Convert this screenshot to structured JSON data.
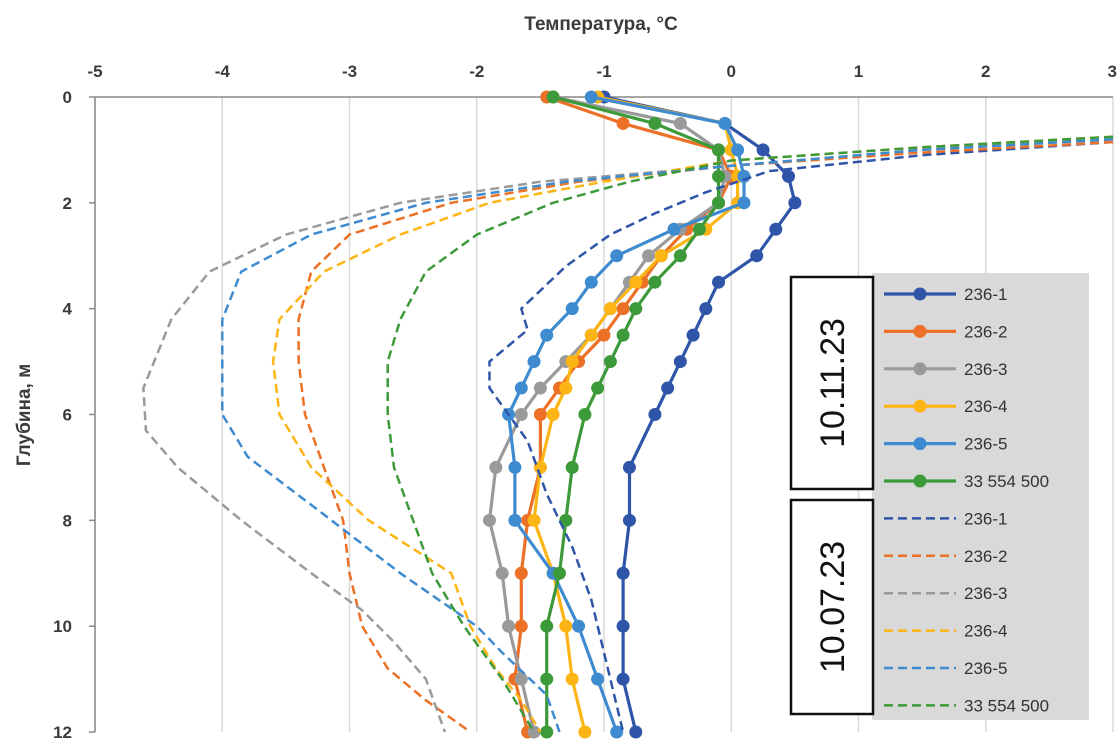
{
  "chart_data": {
    "type": "line",
    "xlabel": "Температура, °С",
    "ylabel": "Глубина, м",
    "xlim": [
      -5,
      3
    ],
    "ylim": [
      12,
      0
    ],
    "x_axis_position": "top",
    "y_inverted": true,
    "xticks": [
      "-5",
      "-4",
      "-3",
      "-2",
      "-1",
      "0",
      "1",
      "2",
      "3"
    ],
    "yticks": [
      "0",
      "2",
      "4",
      "6",
      "8",
      "10",
      "12"
    ],
    "grid": "vertical",
    "legend_position": "right",
    "groups": [
      {
        "label": "10.11.23",
        "style": "solid-with-markers"
      },
      {
        "label": "10.07.23",
        "style": "dashed"
      }
    ],
    "series": [
      {
        "name": "236-1",
        "group": "10.11.23",
        "color": "#2e55a8",
        "x": [
          -1.0,
          -0.05,
          0.25,
          0.45,
          0.5,
          0.35,
          0.2,
          -0.1,
          -0.2,
          -0.3,
          -0.4,
          -0.5,
          -0.6,
          -0.8,
          -0.8,
          -0.85,
          -0.85,
          -0.85,
          -0.75
        ],
        "y": [
          0,
          0.5,
          1,
          1.5,
          2,
          2.5,
          3,
          3.5,
          4,
          4.5,
          5,
          5.5,
          6,
          7,
          8,
          9,
          10,
          11,
          12
        ]
      },
      {
        "name": "236-2",
        "group": "10.11.23",
        "color": "#ec7026",
        "x": [
          -1.45,
          -0.85,
          -0.1,
          0.0,
          -0.1,
          -0.35,
          -0.55,
          -0.7,
          -0.85,
          -1.0,
          -1.2,
          -1.35,
          -1.5,
          -1.5,
          -1.6,
          -1.65,
          -1.65,
          -1.7,
          -1.6
        ],
        "y": [
          0,
          0.5,
          1,
          1.5,
          2,
          2.5,
          3,
          3.5,
          4,
          4.5,
          5,
          5.5,
          6,
          7,
          8,
          9,
          10,
          11,
          12
        ]
      },
      {
        "name": "236-3",
        "group": "10.11.23",
        "color": "#9a9a9a",
        "x": [
          -1.4,
          -0.4,
          -0.1,
          -0.05,
          -0.1,
          -0.4,
          -0.65,
          -0.8,
          -0.95,
          -1.1,
          -1.3,
          -1.5,
          -1.65,
          -1.85,
          -1.9,
          -1.8,
          -1.75,
          -1.65,
          -1.55
        ],
        "y": [
          0,
          0.5,
          1,
          1.5,
          2,
          2.5,
          3,
          3.5,
          4,
          4.5,
          5,
          5.5,
          6,
          7,
          8,
          9,
          10,
          11,
          12
        ]
      },
      {
        "name": "236-4",
        "group": "10.11.23",
        "color": "#fdb515",
        "x": [
          -1.05,
          -0.05,
          0.0,
          0.05,
          0.05,
          -0.2,
          -0.55,
          -0.75,
          -0.95,
          -1.1,
          -1.25,
          -1.3,
          -1.4,
          -1.5,
          -1.55,
          -1.4,
          -1.3,
          -1.25,
          -1.15
        ],
        "y": [
          0,
          0.5,
          1,
          1.5,
          2,
          2.5,
          3,
          3.5,
          4,
          4.5,
          5,
          5.5,
          6,
          7,
          8,
          9,
          10,
          11,
          12
        ]
      },
      {
        "name": "236-5",
        "group": "10.11.23",
        "color": "#3f8bd0",
        "x": [
          -1.1,
          -0.05,
          0.05,
          0.1,
          0.1,
          -0.45,
          -0.9,
          -1.1,
          -1.25,
          -1.45,
          -1.55,
          -1.65,
          -1.75,
          -1.7,
          -1.7,
          -1.4,
          -1.2,
          -1.05,
          -0.9
        ],
        "y": [
          0,
          0.5,
          1,
          1.5,
          2,
          2.5,
          3,
          3.5,
          4,
          4.5,
          5,
          5.5,
          6,
          7,
          8,
          9,
          10,
          11,
          12
        ]
      },
      {
        "name": "33 554 500",
        "group": "10.11.23",
        "color": "#3d9a3a",
        "x": [
          -1.4,
          -0.6,
          -0.1,
          -0.1,
          -0.1,
          -0.25,
          -0.4,
          -0.6,
          -0.75,
          -0.85,
          -0.95,
          -1.05,
          -1.15,
          -1.25,
          -1.3,
          -1.35,
          -1.45,
          -1.45,
          -1.45
        ],
        "y": [
          0,
          0.5,
          1,
          1.5,
          2,
          2.5,
          3,
          3.5,
          4,
          4.5,
          5,
          5.5,
          6,
          7,
          8,
          9,
          10,
          11,
          12
        ]
      },
      {
        "name": "236-1",
        "group": "10.07.23",
        "color": "#2e55a8",
        "x": [
          3.0,
          1.5,
          0.3,
          -0.2,
          -0.6,
          -0.95,
          -1.3,
          -1.65,
          -1.6,
          -1.9,
          -1.9,
          -1.6,
          -1.45,
          -1.25,
          -1.1,
          -1.0,
          -0.9,
          -0.85
        ],
        "y": [
          0.85,
          1.1,
          1.4,
          1.8,
          2.2,
          2.6,
          3.2,
          4.0,
          4.4,
          5.0,
          5.5,
          6.5,
          7.5,
          8.5,
          9.5,
          10.5,
          11.5,
          12
        ]
      },
      {
        "name": "236-2",
        "group": "10.07.23",
        "color": "#ec7026",
        "x": [
          3.0,
          1.5,
          0.0,
          -1.2,
          -2.2,
          -3.0,
          -3.3,
          -3.4,
          -3.4,
          -3.35,
          -3.2,
          -3.05,
          -3.0,
          -2.9,
          -2.7,
          -2.4,
          -2.05
        ],
        "y": [
          0.85,
          1.05,
          1.3,
          1.6,
          2.0,
          2.6,
          3.3,
          4.2,
          5.0,
          6.0,
          7.0,
          8.0,
          9.0,
          10.0,
          10.8,
          11.4,
          12
        ]
      },
      {
        "name": "236-3",
        "group": "10.07.23",
        "color": "#9a9a9a",
        "x": [
          3.0,
          1.5,
          0.0,
          -1.5,
          -2.6,
          -3.5,
          -4.1,
          -4.4,
          -4.62,
          -4.6,
          -4.35,
          -3.85,
          -3.3,
          -2.9,
          -2.65,
          -2.4,
          -2.25
        ],
        "y": [
          0.8,
          1.0,
          1.3,
          1.6,
          2.0,
          2.6,
          3.3,
          4.2,
          5.5,
          6.3,
          7.0,
          8.0,
          9.0,
          9.7,
          10.3,
          11.0,
          12
        ]
      },
      {
        "name": "236-4",
        "group": "10.07.23",
        "color": "#fdb515",
        "x": [
          3.0,
          1.5,
          0.0,
          -1.0,
          -1.9,
          -2.6,
          -3.2,
          -3.55,
          -3.6,
          -3.55,
          -3.3,
          -2.85,
          -2.2,
          -2.05,
          -1.85,
          -1.65,
          -1.5
        ],
        "y": [
          0.75,
          0.95,
          1.2,
          1.6,
          2.0,
          2.6,
          3.3,
          4.2,
          5.0,
          6.0,
          7.0,
          8.0,
          9.0,
          10.0,
          10.8,
          11.4,
          12
        ]
      },
      {
        "name": "236-5",
        "group": "10.07.23",
        "color": "#3f8bd0",
        "x": [
          3.0,
          1.5,
          0.0,
          -1.3,
          -2.4,
          -3.3,
          -3.85,
          -4.0,
          -4.0,
          -3.8,
          -3.25,
          -2.6,
          -2.0,
          -1.8,
          -1.45,
          -1.35
        ],
        "y": [
          0.8,
          1.0,
          1.3,
          1.6,
          2.0,
          2.6,
          3.3,
          4.2,
          6.0,
          6.8,
          7.8,
          9.0,
          10.0,
          10.5,
          11.3,
          12
        ]
      },
      {
        "name": "33 554 500",
        "group": "10.07.23",
        "color": "#3d9a3a",
        "x": [
          3.0,
          1.5,
          0.0,
          -0.8,
          -1.4,
          -2.0,
          -2.4,
          -2.6,
          -2.7,
          -2.7,
          -2.65,
          -2.5,
          -2.35,
          -2.1,
          -1.8,
          -1.55
        ],
        "y": [
          0.75,
          0.95,
          1.2,
          1.6,
          2.0,
          2.6,
          3.3,
          4.2,
          5.0,
          6.0,
          7.0,
          8.0,
          9.0,
          10.0,
          11.0,
          12
        ]
      }
    ]
  }
}
